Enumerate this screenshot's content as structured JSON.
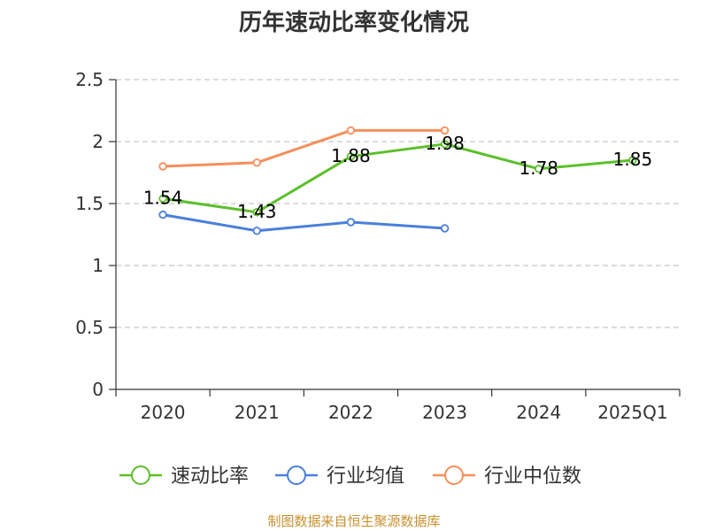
{
  "chart_data": {
    "type": "line",
    "title": "历年速动比率变化情况",
    "categories": [
      "2020",
      "2021",
      "2022",
      "2023",
      "2024",
      "2025Q1"
    ],
    "ylim": [
      0,
      2.5
    ],
    "yticks": [
      "0",
      "0.5",
      "1",
      "1.5",
      "2",
      "2.5"
    ],
    "grid": true,
    "legend_position": "bottom",
    "series": [
      {
        "name": "速动比率",
        "color": "#5cbf2a",
        "values": [
          1.54,
          1.43,
          1.88,
          1.98,
          1.78,
          1.85
        ],
        "labels": [
          "1.54",
          "1.43",
          "1.88",
          "1.98",
          "1.78",
          "1.85"
        ]
      },
      {
        "name": "行业均值",
        "color": "#4a7fdb",
        "values": [
          1.41,
          1.28,
          1.35,
          1.3,
          null,
          null
        ]
      },
      {
        "name": "行业中位数",
        "color": "#f68e5a",
        "values": [
          1.8,
          1.83,
          2.09,
          2.09,
          null,
          null
        ]
      }
    ]
  },
  "footer": {
    "source": "制图数据来自恒生聚源数据库"
  }
}
